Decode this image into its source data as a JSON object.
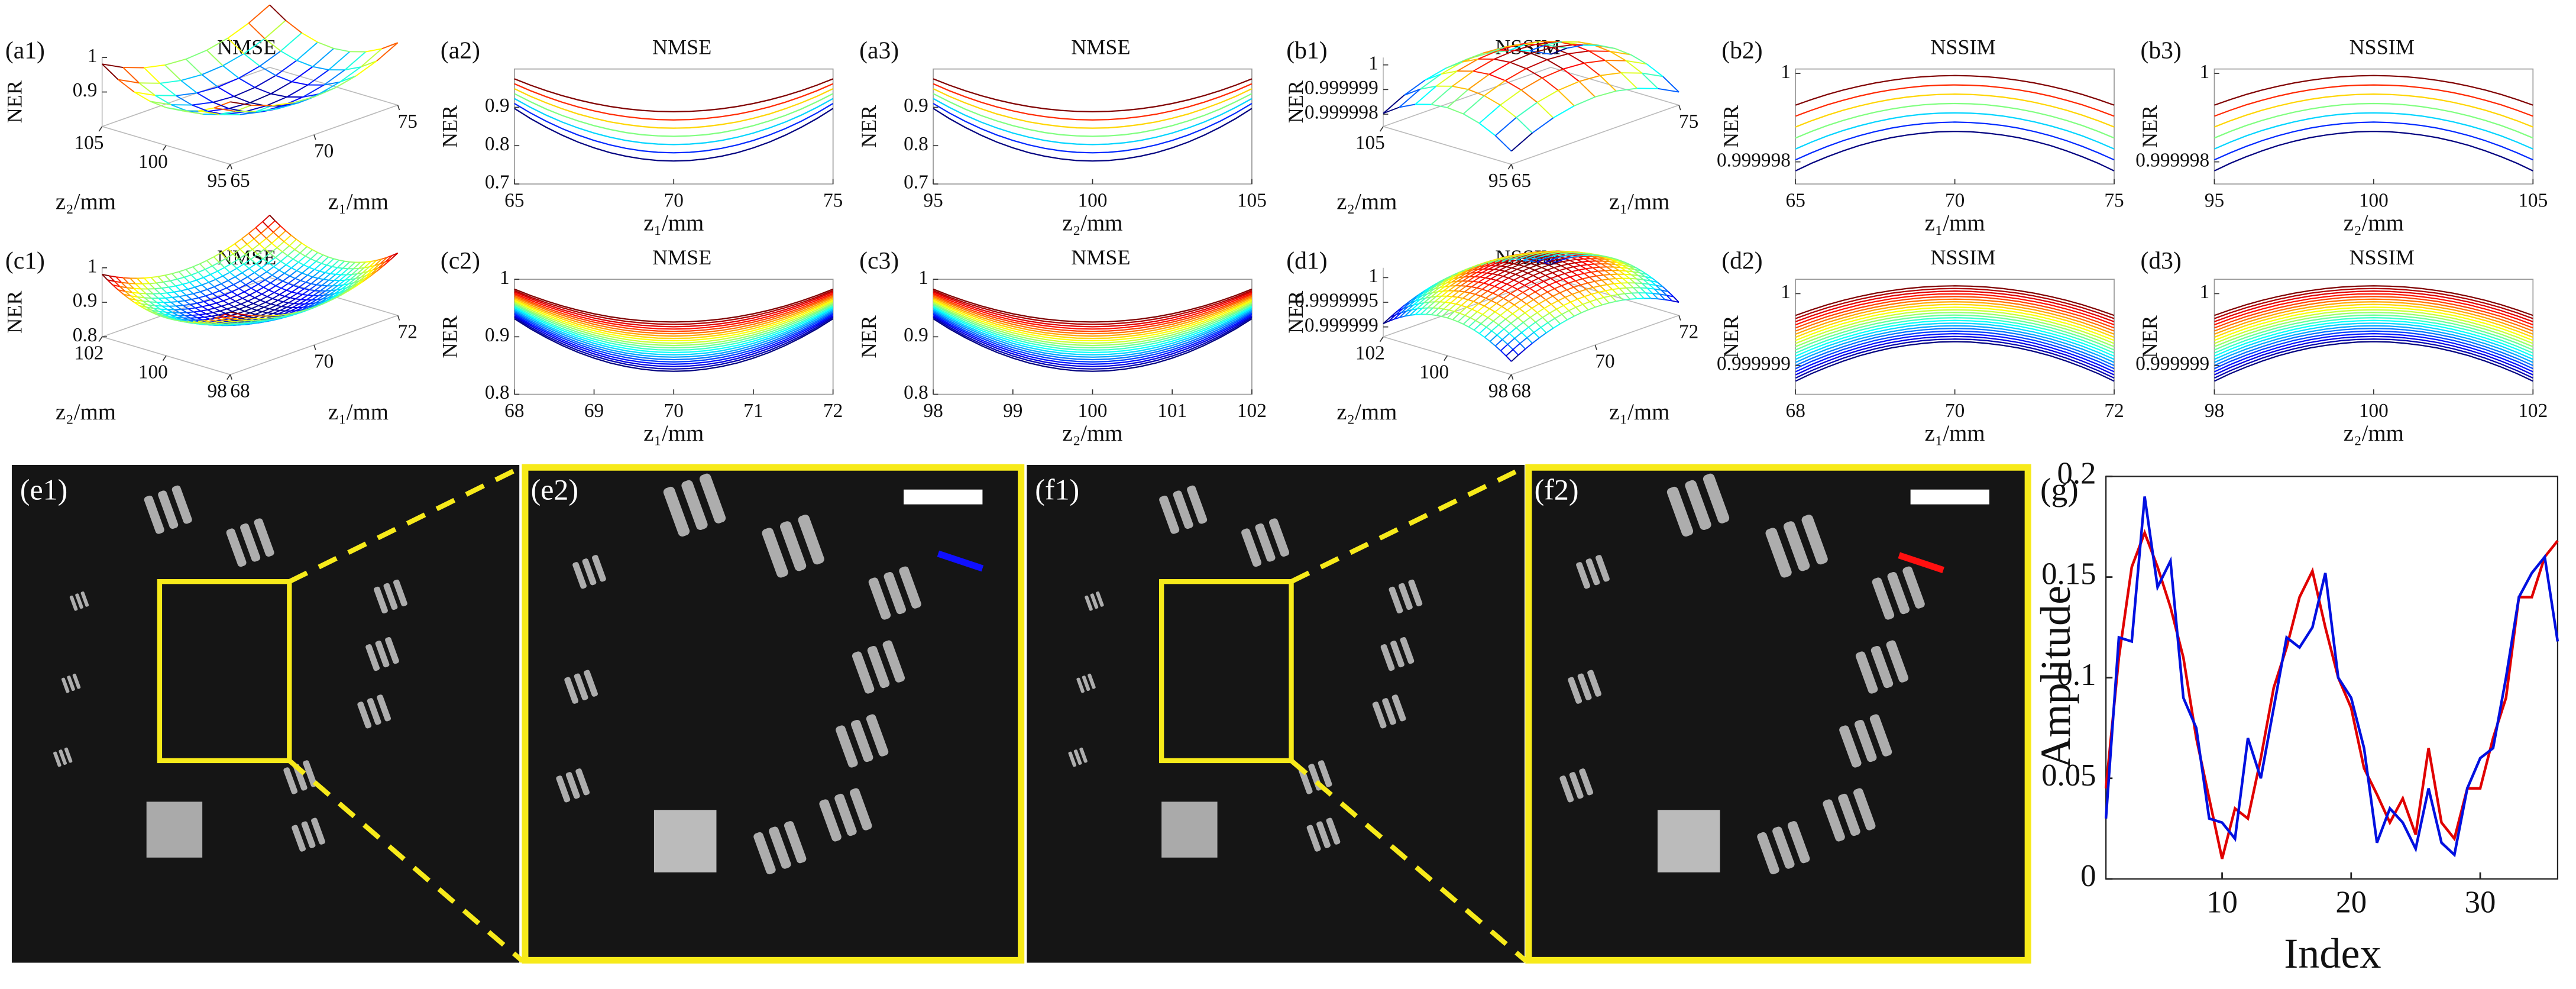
{
  "chart_data": [
    {
      "type": "surface",
      "label": "(a1)",
      "title": "NMSE",
      "xlabel": "z₁/mm",
      "ylabel": "z₂/mm",
      "zlabel": "NER",
      "xlim": [
        65,
        75
      ],
      "xticks": [
        65,
        70,
        75
      ],
      "ylim": [
        95,
        105
      ],
      "yticks": [
        95,
        100,
        105
      ],
      "zlim": [
        0.8,
        1
      ],
      "zticks": [
        0.9,
        1
      ]
    },
    {
      "type": "line",
      "label": "(a2)",
      "title": "NMSE",
      "xlabel": "z₁/mm",
      "ylabel": "NER",
      "xlim": [
        65,
        75
      ],
      "xticks": [
        65,
        70,
        75
      ],
      "ylim": [
        0.7,
        1
      ],
      "yticks": [
        0.7,
        0.8,
        0.9
      ]
    },
    {
      "type": "line",
      "label": "(a3)",
      "title": "NMSE",
      "xlabel": "z₂/mm",
      "ylabel": "NER",
      "xlim": [
        95,
        105
      ],
      "xticks": [
        95,
        100,
        105
      ],
      "ylim": [
        0.7,
        1
      ],
      "yticks": [
        0.7,
        0.8,
        0.9
      ]
    },
    {
      "type": "surface",
      "label": "(b1)",
      "title": "NSSIM",
      "xlabel": "z₁/mm",
      "ylabel": "z₂/mm",
      "zlabel": "NER",
      "xlim": [
        65,
        75
      ],
      "xticks": [
        65,
        75
      ],
      "ylim": [
        95,
        105
      ],
      "yticks": [
        95,
        105
      ],
      "zlim": [
        0.9999975,
        1.0000003
      ],
      "zticks": [
        0.999998,
        0.999999,
        1
      ]
    },
    {
      "type": "line",
      "label": "(b2)",
      "title": "NSSIM",
      "xlabel": "z₁/mm",
      "ylabel": "NER",
      "xlim": [
        65,
        75
      ],
      "xticks": [
        65,
        70,
        75
      ],
      "ylim": [
        0.9999975,
        1.0000001
      ],
      "yticks": [
        0.999998,
        1
      ]
    },
    {
      "type": "line",
      "label": "(b3)",
      "title": "NSSIM",
      "xlabel": "z₂/mm",
      "ylabel": "NER",
      "xlim": [
        95,
        105
      ],
      "xticks": [
        95,
        100,
        105
      ],
      "ylim": [
        0.9999975,
        1.0000001
      ],
      "yticks": [
        0.999998,
        1
      ]
    },
    {
      "type": "surface",
      "label": "(c1)",
      "title": "NMSE",
      "xlabel": "z₁/mm",
      "ylabel": "z₂/mm",
      "zlabel": "NER",
      "xlim": [
        68,
        72
      ],
      "xticks": [
        68,
        70,
        72
      ],
      "ylim": [
        98,
        102
      ],
      "yticks": [
        98,
        100,
        102
      ],
      "zlim": [
        0.8,
        1
      ],
      "zticks": [
        0.8,
        0.9,
        1
      ]
    },
    {
      "type": "line",
      "label": "(c2)",
      "title": "NMSE",
      "xlabel": "z₁/mm",
      "ylabel": "NER",
      "xlim": [
        68,
        72
      ],
      "xticks": [
        68,
        69,
        70,
        71,
        72
      ],
      "ylim": [
        0.8,
        1
      ],
      "yticks": [
        0.8,
        0.9,
        1
      ]
    },
    {
      "type": "line",
      "label": "(c3)",
      "title": "NMSE",
      "xlabel": "z₂/mm",
      "ylabel": "NER",
      "xlim": [
        98,
        102
      ],
      "xticks": [
        98,
        99,
        100,
        101,
        102
      ],
      "ylim": [
        0.8,
        1
      ],
      "yticks": [
        0.8,
        0.9,
        1
      ]
    },
    {
      "type": "surface",
      "label": "(d1)",
      "title": "NSSIM",
      "xlabel": "z₁/mm",
      "ylabel": "z₂/mm",
      "zlabel": "NER",
      "xlim": [
        68,
        72
      ],
      "xticks": [
        68,
        70,
        72
      ],
      "ylim": [
        98,
        102
      ],
      "yticks": [
        98,
        100,
        102
      ],
      "zlim": [
        0.9999988,
        1.0000002
      ],
      "zticks": [
        0.999999,
        0.9999995,
        1
      ]
    },
    {
      "type": "line",
      "label": "(d2)",
      "title": "NSSIM",
      "xlabel": "z₁/mm",
      "ylabel": "NER",
      "xlim": [
        68,
        72
      ],
      "xticks": [
        68,
        70,
        72
      ],
      "ylim": [
        0.9999986,
        1.0000002
      ],
      "yticks": [
        0.999999,
        1
      ]
    },
    {
      "type": "line",
      "label": "(d3)",
      "title": "NSSIM",
      "xlabel": "z₂/mm",
      "ylabel": "NER",
      "xlim": [
        98,
        102
      ],
      "xticks": [
        98,
        100,
        102
      ],
      "ylim": [
        0.9999986,
        1.0000002
      ],
      "yticks": [
        0.999999,
        1
      ]
    },
    {
      "type": "profile",
      "label": "(g)",
      "xlabel": "Index",
      "ylabel": "Amplitude",
      "xlim": [
        1,
        36
      ],
      "xticks": [
        10,
        20,
        30
      ],
      "ylim": [
        0,
        0.2
      ],
      "yticks": [
        0,
        0.05,
        0.1,
        0.15,
        0.2
      ],
      "x": [
        1,
        2,
        3,
        4,
        5,
        6,
        7,
        8,
        9,
        10,
        11,
        12,
        13,
        14,
        15,
        16,
        17,
        18,
        19,
        20,
        21,
        22,
        23,
        24,
        25,
        26,
        27,
        28,
        29,
        30,
        31,
        32,
        33,
        34,
        35,
        36
      ],
      "series": [
        {
          "color": "#e00000",
          "values": [
            0.045,
            0.11,
            0.155,
            0.172,
            0.155,
            0.135,
            0.11,
            0.07,
            0.04,
            0.01,
            0.035,
            0.03,
            0.06,
            0.095,
            0.115,
            0.14,
            0.153,
            0.125,
            0.1,
            0.085,
            0.055,
            0.042,
            0.028,
            0.04,
            0.022,
            0.065,
            0.028,
            0.02,
            0.045,
            0.045,
            0.07,
            0.09,
            0.14,
            0.14,
            0.16,
            0.168
          ]
        },
        {
          "color": "#0010e0",
          "values": [
            0.03,
            0.12,
            0.118,
            0.19,
            0.145,
            0.158,
            0.09,
            0.075,
            0.03,
            0.028,
            0.02,
            0.07,
            0.05,
            0.085,
            0.12,
            0.115,
            0.125,
            0.152,
            0.1,
            0.09,
            0.065,
            0.018,
            0.035,
            0.028,
            0.015,
            0.045,
            0.018,
            0.012,
            0.045,
            0.06,
            0.065,
            0.1,
            0.14,
            0.152,
            0.16,
            0.118
          ]
        }
      ]
    }
  ],
  "images": [
    {
      "label": "(e1)"
    },
    {
      "label": "(e2)"
    },
    {
      "label": "(f1)"
    },
    {
      "label": "(f2)"
    }
  ]
}
